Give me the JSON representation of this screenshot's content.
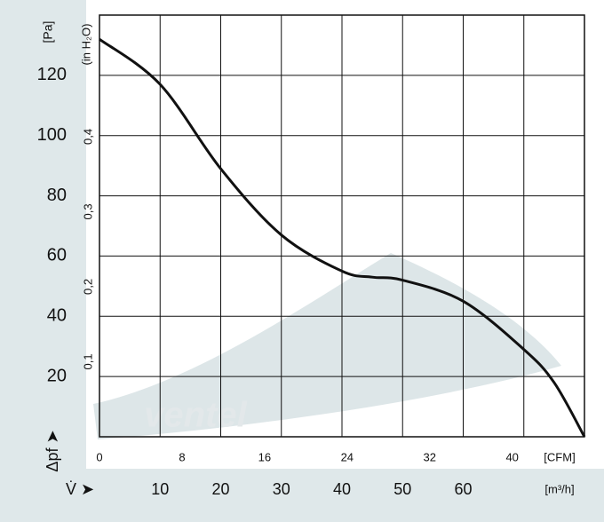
{
  "chart_data": {
    "type": "line",
    "watermark": "ventel",
    "y_symbol": "Δpf ➤",
    "y_label": "[Pa]",
    "y2_label": "(in H₂O)",
    "x_symbol": "V̇ ➤",
    "x_label": "[m³/h]",
    "x2_label": "[CFM]",
    "x": [
      0,
      10,
      20,
      30,
      40,
      45,
      50,
      60,
      70,
      75,
      80
    ],
    "values": [
      132,
      117,
      89,
      67,
      55,
      53,
      52,
      45,
      29,
      18,
      0
    ],
    "color": "#111111",
    "xlim": [
      0,
      80
    ],
    "xticks": [
      10,
      20,
      30,
      40,
      50,
      60
    ],
    "xgrid": [
      10,
      20,
      30,
      40,
      50,
      60,
      70
    ],
    "x2lim": [
      0,
      47
    ],
    "x2ticks": [
      0,
      8,
      16,
      24,
      32,
      40
    ],
    "ylim": [
      0,
      140
    ],
    "yticks": [
      20,
      40,
      60,
      80,
      100,
      120
    ],
    "y2lim": [
      0,
      0.562
    ],
    "y2ticks": [
      {
        "value": 0.1,
        "label": "0,1"
      },
      {
        "value": 0.2,
        "label": "0,2"
      },
      {
        "value": 0.3,
        "label": "0,3"
      },
      {
        "value": 0.4,
        "label": "0,4"
      }
    ],
    "grid": true
  }
}
